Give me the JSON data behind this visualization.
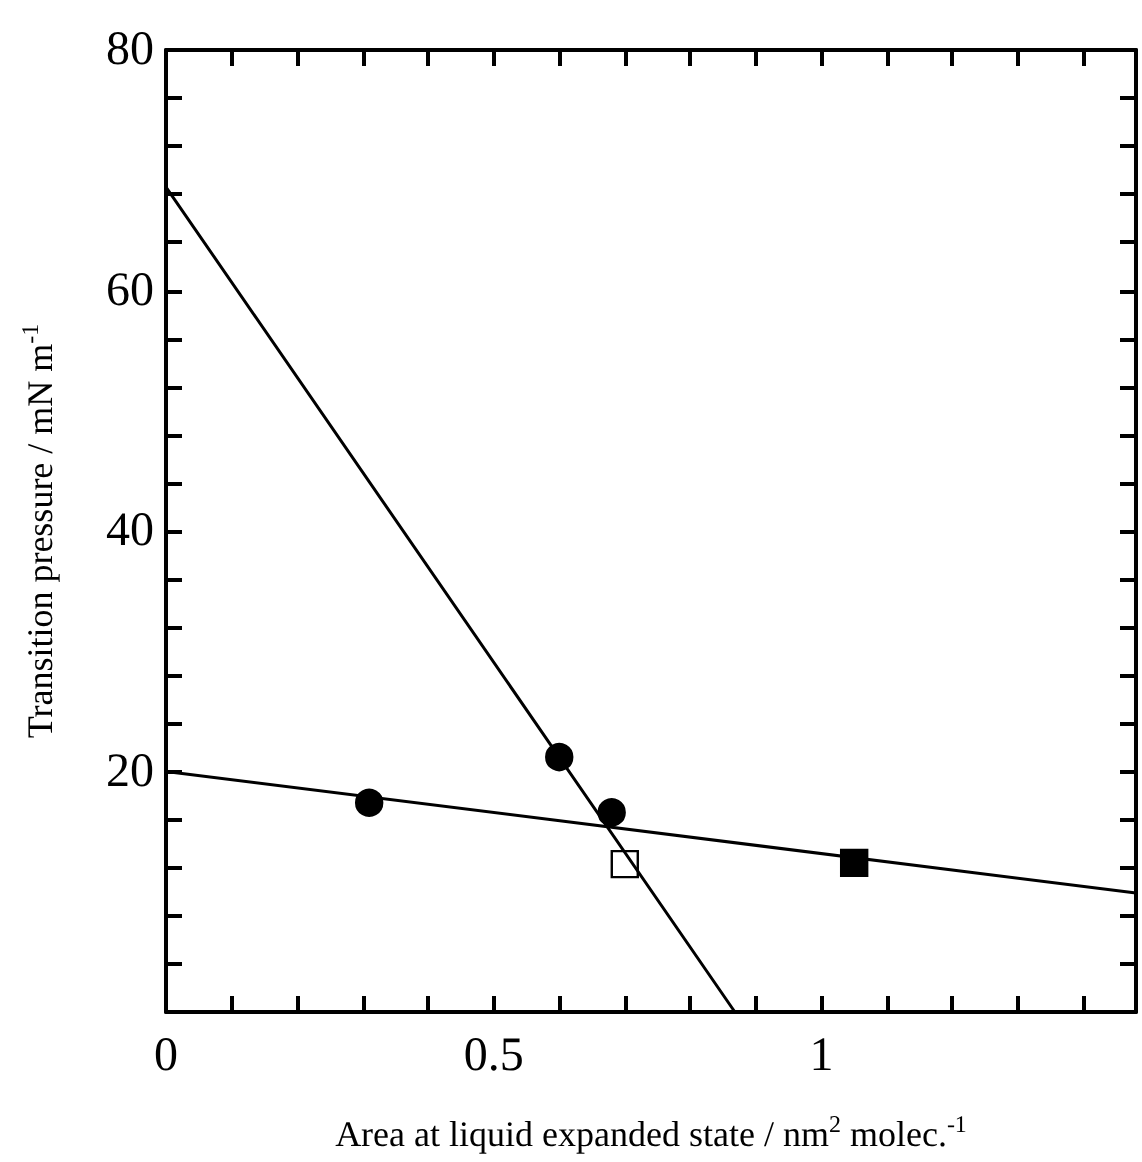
{
  "chart_data": {
    "type": "scatter",
    "xlabel": "Area at liquid expanded state / nm$^{2}$ molec.$^{-1}$",
    "ylabel": "Transition pressure / mN m$^{-1}$",
    "xlim": [
      0,
      1.48
    ],
    "xticks": [
      0,
      {
        "value": 0.1,
        "label": null
      },
      {
        "value": 0.2,
        "label": null
      },
      {
        "value": 0.3,
        "label": null
      },
      {
        "value": 0.4,
        "label": null
      },
      0.5,
      {
        "value": 0.6,
        "label": null
      },
      {
        "value": 0.7,
        "label": null
      },
      {
        "value": 0.8,
        "label": null
      },
      {
        "value": 0.9,
        "label": null
      },
      1,
      {
        "value": 1.1,
        "label": null
      },
      {
        "value": 1.2,
        "label": null
      },
      {
        "value": 1.3,
        "label": null
      },
      {
        "value": 1.4,
        "label": null
      }
    ],
    "ylim": [
      0,
      80
    ],
    "yticks": [
      {
        "value": 0,
        "label": null
      },
      {
        "value": 4,
        "label": null
      },
      {
        "value": 8,
        "label": null
      },
      {
        "value": 12,
        "label": null
      },
      {
        "value": 16,
        "label": null
      },
      20,
      {
        "value": 24,
        "label": null
      },
      {
        "value": 28,
        "label": null
      },
      {
        "value": 32,
        "label": null
      },
      {
        "value": 36,
        "label": null
      },
      40,
      {
        "value": 44,
        "label": null
      },
      {
        "value": 48,
        "label": null
      },
      {
        "value": 52,
        "label": null
      },
      {
        "value": 56,
        "label": null
      },
      60,
      {
        "value": 64,
        "label": null
      },
      {
        "value": 68,
        "label": null
      },
      {
        "value": 72,
        "label": null
      },
      {
        "value": 76,
        "label": null
      },
      80
    ],
    "grid": false,
    "series": [
      {
        "type": "line",
        "color": "#000000",
        "marker": "none",
        "line_style": "solid",
        "x": [
          0,
          0.868
        ],
        "values": [
          68.6,
          0
        ]
      },
      {
        "type": "line",
        "color": "#000000",
        "marker": "none",
        "line_style": "solid",
        "x": [
          0,
          1.48
        ],
        "values": [
          20.0,
          9.9
        ]
      },
      {
        "color": "#000000",
        "marker": "circle",
        "x": [
          0.31
        ],
        "values": [
          17.4
        ]
      },
      {
        "color": "#000000",
        "marker": "circle",
        "x": [
          0.6
        ],
        "values": [
          21.2
        ]
      },
      {
        "color": "#000000",
        "marker": "circle",
        "x": [
          0.68
        ],
        "values": [
          16.6
        ]
      },
      {
        "color": "#ffffff",
        "marker": "square",
        "x": [
          0.7
        ],
        "values": [
          12.3
        ]
      },
      {
        "color": "#000000",
        "marker": "square",
        "x": [
          1.05
        ],
        "values": [
          12.4
        ]
      }
    ]
  }
}
